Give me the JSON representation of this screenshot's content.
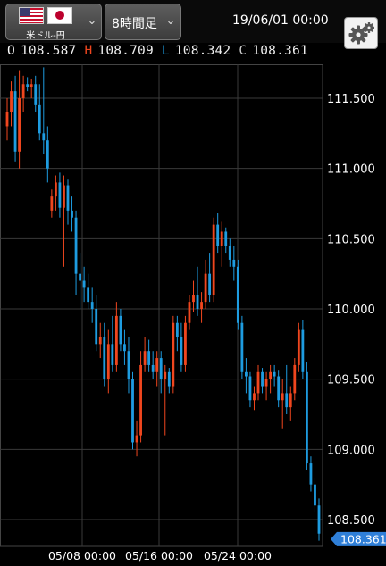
{
  "header": {
    "pair_label": "米ドル-円",
    "timeframe_label": "8時間足",
    "datetime": "19/06/01 00:00"
  },
  "ohlc": {
    "open_key": "O",
    "open": "108.587",
    "high_key": "H",
    "high": "108.709",
    "low_key": "L",
    "low": "108.342",
    "close_key": "C",
    "close": "108.361"
  },
  "colors": {
    "up": "#f0461e",
    "down": "#1e9ce0",
    "grid": "#3a3a3a",
    "price_tag": "#2f7fd8"
  },
  "chart_data": {
    "type": "candlestick",
    "y_ticks": [
      "111.500",
      "111.000",
      "110.500",
      "110.000",
      "109.500",
      "109.000",
      "108.500"
    ],
    "x_ticks": [
      "05/08 00:00",
      "05/16 00:00",
      "05/24 00:00"
    ],
    "ylim": [
      108.35,
      111.82
    ],
    "current_price": "108.361",
    "candles": [
      [
        111.3,
        111.5,
        111.2,
        111.4
      ],
      [
        111.4,
        111.62,
        111.3,
        111.55
      ],
      [
        111.55,
        111.66,
        111.05,
        111.12
      ],
      [
        111.12,
        111.7,
        111.0,
        111.5
      ],
      [
        111.5,
        111.66,
        111.4,
        111.6
      ],
      [
        111.6,
        111.65,
        111.55,
        111.58
      ],
      [
        111.58,
        111.64,
        111.5,
        111.6
      ],
      [
        111.6,
        111.66,
        111.4,
        111.45
      ],
      [
        111.45,
        111.6,
        111.2,
        111.25
      ],
      [
        111.25,
        111.72,
        111.1,
        111.2
      ],
      [
        111.2,
        111.3,
        110.9,
        111.0
      ],
      [
        110.7,
        110.85,
        110.65,
        110.8
      ],
      [
        110.8,
        110.95,
        110.7,
        110.9
      ],
      [
        110.9,
        110.97,
        110.65,
        110.72
      ],
      [
        110.72,
        110.95,
        110.3,
        110.88
      ],
      [
        110.88,
        110.92,
        110.6,
        110.7
      ],
      [
        110.7,
        110.8,
        110.55,
        110.65
      ],
      [
        110.65,
        110.7,
        110.1,
        110.25
      ],
      [
        110.25,
        110.4,
        110.0,
        110.2
      ],
      [
        110.2,
        110.3,
        110.05,
        110.15
      ],
      [
        110.15,
        110.25,
        110.0,
        110.05
      ],
      [
        110.05,
        110.15,
        109.9,
        110.0
      ],
      [
        110.0,
        110.1,
        109.7,
        109.75
      ],
      [
        109.75,
        109.9,
        109.65,
        109.8
      ],
      [
        109.8,
        109.9,
        109.45,
        109.5
      ],
      [
        109.5,
        109.85,
        109.4,
        109.75
      ],
      [
        109.75,
        109.95,
        109.55,
        109.6
      ],
      [
        109.6,
        110.05,
        109.55,
        109.95
      ],
      [
        109.95,
        110.0,
        109.7,
        109.75
      ],
      [
        109.75,
        109.85,
        109.6,
        109.7
      ],
      [
        109.7,
        109.8,
        109.4,
        109.5
      ],
      [
        109.5,
        109.55,
        109.0,
        109.05
      ],
      [
        109.05,
        109.2,
        108.95,
        109.1
      ],
      [
        109.1,
        109.7,
        109.05,
        109.6
      ],
      [
        109.6,
        109.8,
        109.55,
        109.7
      ],
      [
        109.7,
        109.78,
        109.55,
        109.6
      ],
      [
        109.6,
        109.7,
        109.5,
        109.55
      ],
      [
        109.55,
        109.7,
        109.45,
        109.65
      ],
      [
        109.65,
        109.7,
        109.4,
        109.5
      ],
      [
        109.5,
        109.6,
        109.1,
        109.55
      ],
      [
        109.55,
        109.58,
        109.4,
        109.45
      ],
      [
        109.45,
        109.95,
        109.4,
        109.9
      ],
      [
        109.9,
        109.95,
        109.7,
        109.8
      ],
      [
        109.8,
        109.9,
        109.55,
        109.6
      ],
      [
        109.6,
        109.95,
        109.55,
        109.9
      ],
      [
        109.9,
        110.1,
        109.85,
        110.05
      ],
      [
        110.05,
        110.2,
        109.98,
        110.1
      ],
      [
        110.1,
        110.3,
        109.95,
        110.0
      ],
      [
        110.0,
        110.12,
        109.9,
        110.05
      ],
      [
        110.05,
        110.35,
        110.0,
        110.25
      ],
      [
        110.25,
        110.4,
        110.05,
        110.1
      ],
      [
        110.1,
        110.65,
        110.05,
        110.6
      ],
      [
        110.6,
        110.68,
        110.4,
        110.45
      ],
      [
        110.45,
        110.62,
        110.3,
        110.55
      ],
      [
        110.55,
        110.58,
        110.4,
        110.45
      ],
      [
        110.45,
        110.5,
        110.3,
        110.35
      ],
      [
        110.35,
        110.45,
        110.2,
        110.3
      ],
      [
        110.3,
        110.35,
        109.85,
        109.9
      ],
      [
        109.9,
        109.95,
        109.5,
        109.55
      ],
      [
        109.55,
        109.65,
        109.4,
        109.52
      ],
      [
        109.52,
        109.55,
        109.3,
        109.35
      ],
      [
        109.35,
        109.45,
        109.28,
        109.4
      ],
      [
        109.4,
        109.6,
        109.35,
        109.55
      ],
      [
        109.55,
        109.58,
        109.4,
        109.45
      ],
      [
        109.45,
        109.55,
        109.35,
        109.5
      ],
      [
        109.5,
        109.6,
        109.4,
        109.55
      ],
      [
        109.55,
        109.6,
        109.45,
        109.52
      ],
      [
        109.52,
        109.56,
        109.3,
        109.35
      ],
      [
        109.35,
        109.5,
        109.15,
        109.4
      ],
      [
        109.4,
        109.6,
        109.25,
        109.3
      ],
      [
        109.3,
        109.45,
        109.2,
        109.4
      ],
      [
        109.4,
        109.65,
        109.35,
        109.6
      ],
      [
        109.6,
        109.9,
        109.55,
        109.85
      ],
      [
        109.85,
        109.92,
        109.5,
        109.55
      ],
      [
        109.55,
        109.62,
        108.85,
        108.9
      ],
      [
        108.9,
        108.95,
        108.7,
        108.75
      ],
      [
        108.75,
        108.8,
        108.55,
        108.6
      ],
      [
        108.6,
        108.65,
        108.35,
        108.4
      ]
    ]
  }
}
